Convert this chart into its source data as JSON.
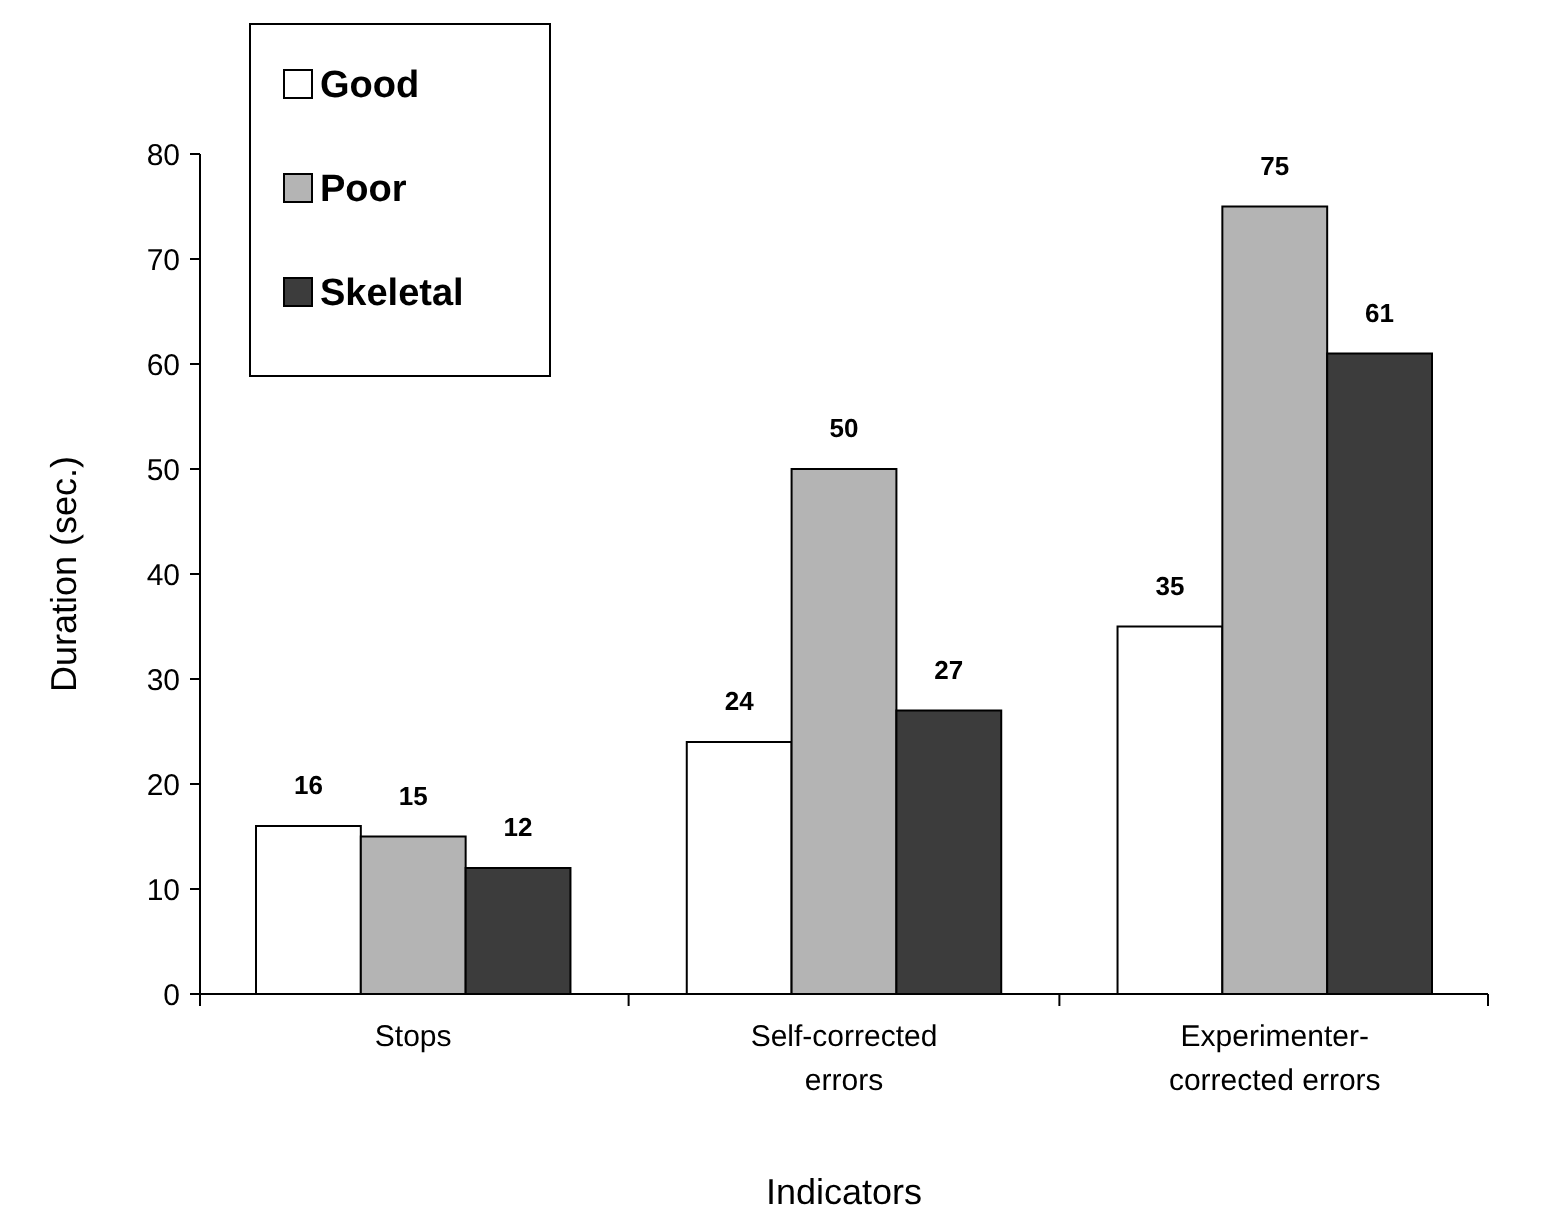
{
  "chart_data": {
    "type": "bar",
    "xlabel": "Indicators",
    "ylabel": "Duration (sec.)",
    "categories": [
      "Stops",
      "Self-corrected errors",
      "Experimenter-corrected errors"
    ],
    "series": [
      {
        "name": "Good",
        "color": "#ffffff",
        "values": [
          16,
          24,
          35
        ]
      },
      {
        "name": "Poor",
        "color": "#b4b4b4",
        "values": [
          15,
          50,
          75
        ]
      },
      {
        "name": "Skeletal",
        "color": "#3c3c3c",
        "values": [
          12,
          27,
          61
        ]
      }
    ],
    "ylim": [
      0,
      80
    ],
    "yticks": [
      0,
      10,
      20,
      30,
      40,
      50,
      60,
      70,
      80
    ],
    "data_labels": true,
    "legend": "top left",
    "grid": false
  }
}
